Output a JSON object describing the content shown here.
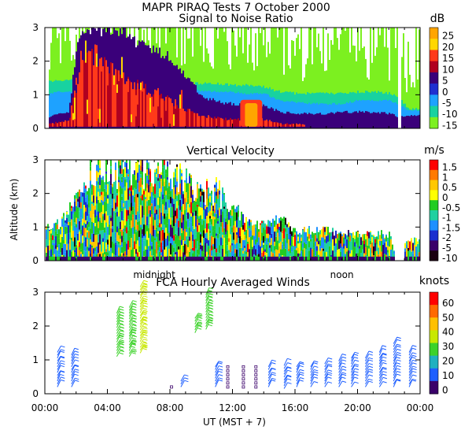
{
  "header": {
    "title": "MAPR PIRAQ Tests  7 October 2000"
  },
  "colors": {
    "background": "#ffffff",
    "axis": "#000000",
    "no_data": "#ffffff"
  },
  "chart_data": [
    {
      "type": "heatmap",
      "title": "Signal to Noise Ratio",
      "unit": "dB",
      "ylabel": "",
      "ylim": [
        0,
        3
      ],
      "yticks": [
        "0",
        "1",
        "2",
        "3"
      ],
      "xlim": [
        0,
        24
      ],
      "colorbar": {
        "labels": [
          "25",
          "20",
          "15",
          "10",
          "5",
          "0",
          "-5",
          "-10",
          "-15"
        ],
        "colors": [
          "#ffa500",
          "#ffd700",
          "#ff3a1a",
          "#b00020",
          "#3a007a",
          "#1f2fd0",
          "#1ea2ff",
          "#18d2a0",
          "#7cf020"
        ]
      },
      "profile": {
        "hours": [
          0.3,
          0.8,
          1.5,
          2.0,
          2.5,
          3.0,
          4.0,
          5.0,
          6.0,
          7.0,
          8.0,
          9.0,
          10.0,
          11.0,
          12.0,
          13.0,
          14.0,
          15.0,
          16.0,
          17.0,
          18.0,
          19.0,
          20.0,
          21.0,
          22.0,
          22.6,
          23.2,
          24.0
        ],
        "deep_top": [
          0.35,
          0.45,
          0.5,
          2.5,
          3.0,
          3.0,
          3.0,
          2.9,
          2.6,
          2.4,
          2.2,
          1.6,
          1.0,
          0.8,
          0.75,
          0.75,
          0.7,
          0.5,
          0.45,
          0.45,
          0.45,
          0.5,
          0.5,
          0.5,
          0.45,
          0.35,
          0.4,
          0.4
        ],
        "blue_top": [
          1.0,
          1.05,
          1.05,
          1.1,
          1.2,
          1.3,
          1.3,
          1.3,
          1.2,
          1.2,
          1.2,
          1.1,
          1.1,
          1.05,
          1.05,
          1.0,
          1.0,
          0.8,
          0.75,
          0.7,
          0.7,
          0.7,
          0.8,
          0.8,
          0.8,
          0.7,
          0.5,
          0.5
        ],
        "teal_top": [
          1.35,
          1.4,
          1.4,
          1.5,
          1.5,
          1.55,
          1.5,
          1.5,
          1.45,
          1.4,
          1.35,
          1.3,
          1.3,
          1.3,
          1.25,
          1.25,
          1.2,
          1.05,
          1.0,
          1.0,
          1.0,
          1.0,
          1.05,
          1.05,
          1.0,
          0.9,
          0.55,
          0.55
        ],
        "strong_top": [
          0.15,
          0.2,
          0.25,
          1.5,
          2.2,
          2.5,
          2.0,
          1.6,
          1.4,
          1.1,
          0.9,
          0.6,
          0.4,
          0.35,
          0.3,
          0.3,
          0.3,
          0.15,
          0.15,
          0.1,
          0.1,
          0.1,
          0.1,
          0.1,
          0.1,
          0.1,
          0.1,
          0.1
        ]
      },
      "peak_patch": {
        "x": [
          12.8,
          13.6
        ],
        "y": [
          0.05,
          0.75
        ]
      }
    },
    {
      "type": "heatmap",
      "title": "Vertical Velocity",
      "unit": "m/s",
      "ylabel": "Altitude (km)",
      "ylim": [
        0,
        3
      ],
      "yticks": [
        "0",
        "1",
        "2",
        "3"
      ],
      "xlim": [
        0,
        24
      ],
      "colorbar": {
        "labels": [
          "1.5",
          "1",
          "0.5",
          "0",
          "-0.5",
          "-1",
          "-1.5",
          "-2",
          "-5",
          "-10"
        ],
        "colors": [
          "#ff0000",
          "#ff7a00",
          "#ffc800",
          "#ffff00",
          "#22cc22",
          "#1fd0a0",
          "#1e90ff",
          "#1a2fcf",
          "#3a006a",
          "#1a0010"
        ]
      },
      "profile": {
        "hours": [
          0.0,
          1.0,
          2.0,
          3.0,
          4.0,
          5.0,
          6.0,
          7.0,
          8.0,
          9.0,
          10.0,
          11.0,
          12.0,
          13.0,
          14.0,
          15.0,
          16.0,
          17.0,
          18.0,
          19.0,
          20.0,
          21.0,
          22.0,
          22.5,
          23.0,
          24.0
        ],
        "top": [
          1.0,
          1.1,
          2.0,
          3.0,
          3.0,
          3.0,
          3.0,
          3.0,
          3.0,
          2.6,
          2.2,
          2.3,
          1.6,
          1.1,
          1.1,
          1.3,
          0.9,
          0.9,
          0.9,
          0.8,
          0.8,
          0.8,
          0.8,
          0.0,
          0.6,
          0.6
        ]
      }
    },
    {
      "type": "wind_barbs",
      "title": "FCA Hourly Averaged Winds",
      "unit": "knots",
      "ylabel": "",
      "xlabel": "UT  (MST + 7)",
      "ylim": [
        0,
        3
      ],
      "yticks": [
        "0",
        "1",
        "2",
        "3"
      ],
      "xlim": [
        0,
        24
      ],
      "xticks": [
        "00:00",
        "04:00",
        "08:00",
        "12:00",
        "16:00",
        "20:00",
        "00:00"
      ],
      "xtick_hours": [
        0,
        4,
        8,
        12,
        16,
        20,
        24
      ],
      "annotations": [
        {
          "text": "midnight",
          "hour": 7.0
        },
        {
          "text": "noon",
          "hour": 19.0
        }
      ],
      "colorbar": {
        "labels": [
          "60",
          "50",
          "40",
          "30",
          "20",
          "10",
          "0"
        ],
        "colors": [
          "#ff0000",
          "#ff6a00",
          "#ffc000",
          "#c8e800",
          "#3cd22a",
          "#1fb0c0",
          "#1e5fff",
          "#3a006a"
        ]
      },
      "profiles": [
        {
          "hour": 0.8,
          "bottom": 0.2,
          "top": 1.25,
          "speed": 10
        },
        {
          "hour": 1.7,
          "bottom": 0.2,
          "top": 1.2,
          "speed": 5
        },
        {
          "hour": 4.6,
          "bottom": 1.1,
          "top": 2.45,
          "speed": 30
        },
        {
          "hour": 5.4,
          "bottom": 1.1,
          "top": 2.6,
          "speed": 30
        },
        {
          "hour": 6.1,
          "bottom": 1.2,
          "top": 3.2,
          "speed": 35
        },
        {
          "hour": 8.1,
          "bottom": 0.2,
          "top": 0.2,
          "speed": 0
        },
        {
          "hour": 8.7,
          "bottom": 0.2,
          "top": 0.4,
          "speed": 5
        },
        {
          "hour": 9.6,
          "bottom": 1.8,
          "top": 2.3,
          "speed": 30
        },
        {
          "hour": 10.3,
          "bottom": 1.9,
          "top": 3.0,
          "speed": 30
        },
        {
          "hour": 10.9,
          "bottom": 0.2,
          "top": 0.8,
          "speed": 5
        },
        {
          "hour": 11.7,
          "bottom": 0.2,
          "top": 0.8,
          "speed": 0
        },
        {
          "hour": 12.7,
          "bottom": 0.2,
          "top": 0.8,
          "speed": 0
        },
        {
          "hour": 13.5,
          "bottom": 0.2,
          "top": 0.8,
          "speed": 0
        },
        {
          "hour": 14.3,
          "bottom": 0.2,
          "top": 0.8,
          "speed": 5
        },
        {
          "hour": 15.3,
          "bottom": 0.15,
          "top": 0.9,
          "speed": 5
        },
        {
          "hour": 16.1,
          "bottom": 0.2,
          "top": 0.8,
          "speed": 5
        },
        {
          "hour": 17.0,
          "bottom": 0.2,
          "top": 0.8,
          "speed": 5
        },
        {
          "hour": 17.9,
          "bottom": 0.2,
          "top": 0.9,
          "speed": 10
        },
        {
          "hour": 18.8,
          "bottom": 0.2,
          "top": 1.0,
          "speed": 10
        },
        {
          "hour": 19.6,
          "bottom": 0.2,
          "top": 1.1,
          "speed": 10
        },
        {
          "hour": 20.5,
          "bottom": 0.2,
          "top": 1.1,
          "speed": 10
        },
        {
          "hour": 21.4,
          "bottom": 0.2,
          "top": 1.3,
          "speed": 10
        },
        {
          "hour": 22.3,
          "bottom": 0.2,
          "top": 1.5,
          "speed": 10
        },
        {
          "hour": 23.3,
          "bottom": 0.2,
          "top": 1.3,
          "speed": 5
        }
      ]
    }
  ]
}
